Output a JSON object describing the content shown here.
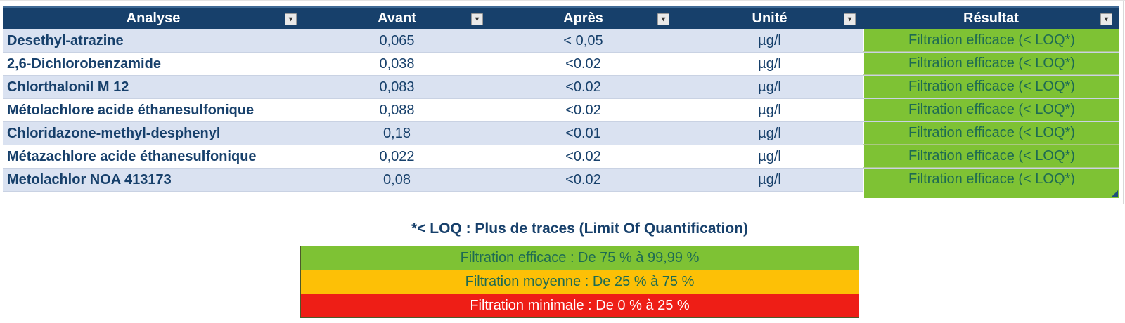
{
  "table": {
    "columns": [
      {
        "label": "Analyse"
      },
      {
        "label": "Avant"
      },
      {
        "label": "Après"
      },
      {
        "label": "Unité"
      },
      {
        "label": "Résultat"
      }
    ],
    "rows": [
      {
        "analyse": "Desethyl-atrazine",
        "avant": "0,065",
        "apres": "< 0,05",
        "unite": "µg/l",
        "resultat": "Filtration efficace (< LOQ*)"
      },
      {
        "analyse": "2,6-Dichlorobenzamide",
        "avant": "0,038",
        "apres": "<0.02",
        "unite": "µg/l",
        "resultat": "Filtration efficace (< LOQ*)"
      },
      {
        "analyse": "Chlorthalonil M 12",
        "avant": "0,083",
        "apres": "<0.02",
        "unite": "µg/l",
        "resultat": "Filtration efficace (< LOQ*)"
      },
      {
        "analyse": "Métolachlore acide éthanesulfonique",
        "avant": "0,088",
        "apres": "<0.02",
        "unite": "µg/l",
        "resultat": "Filtration efficace (< LOQ*)"
      },
      {
        "analyse": "Chloridazone-methyl-desphenyl",
        "avant": "0,18",
        "apres": "<0.01",
        "unite": "µg/l",
        "resultat": "Filtration efficace (< LOQ*)"
      },
      {
        "analyse": "Métazachlore acide éthanesulfonique",
        "avant": "0,022",
        "apres": "<0.02",
        "unite": "µg/l",
        "resultat": "Filtration efficace (< LOQ*)"
      },
      {
        "analyse": "Metolachlor NOA 413173",
        "avant": "0,08",
        "apres": "<0.02",
        "unite": "µg/l",
        "resultat": "Filtration efficace (< LOQ*)"
      }
    ]
  },
  "icons": {
    "filter_arrow": "▾"
  },
  "legend": {
    "note": "*< LOQ : Plus de traces (Limit Of Quantification)",
    "items": [
      {
        "label": "Filtration efficace : De 75 % à 99,99 %",
        "color": "#7ec234",
        "text_color": "#1e6b52"
      },
      {
        "label": "Filtration moyenne : De 25 % à 75 %",
        "color": "#fdc006",
        "text_color": "#1e6b52"
      },
      {
        "label": "Filtration minimale : De 0 % à 25 %",
        "color": "#ee1e16",
        "text_color": "#ffffff"
      }
    ]
  },
  "colors": {
    "header_background": "#17406B",
    "row_alternate": "#dae2f1",
    "row_text": "#17406B",
    "result_green": "#7ec234",
    "result_text": "#1e6b52",
    "legend_orange": "#fdc006",
    "legend_red": "#ee1e16"
  }
}
